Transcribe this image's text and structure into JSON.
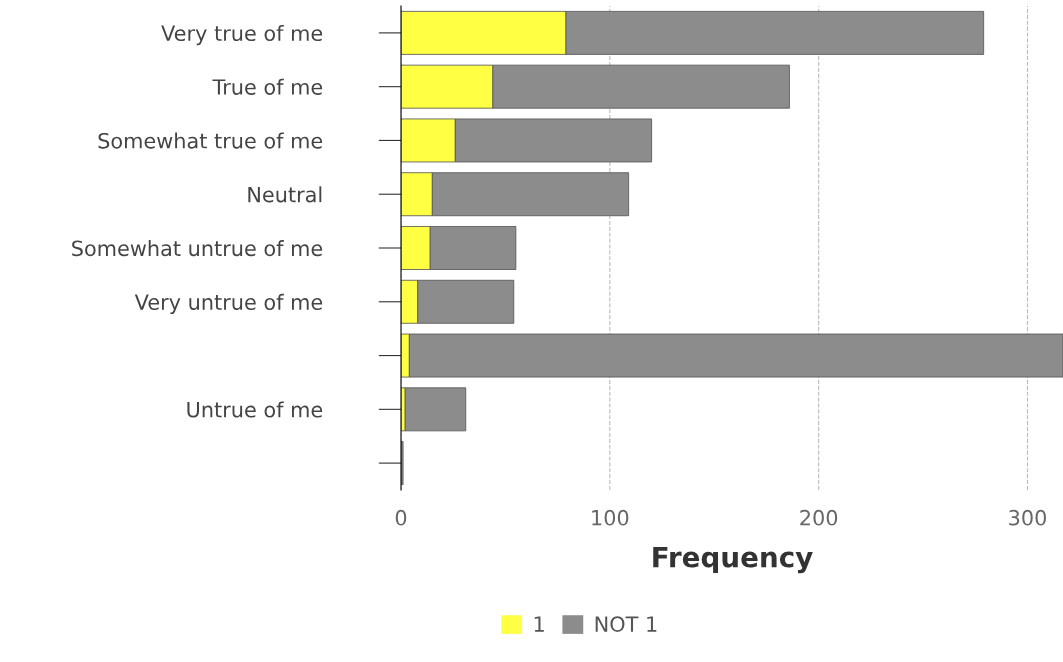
{
  "chart_data": {
    "type": "bar",
    "orientation": "horizontal",
    "stacked": true,
    "categories": [
      "Very true of me",
      "True of me",
      "Somewhat true of me",
      "Neutral",
      "Somewhat untrue of me",
      "Very untrue of me",
      null,
      "Untrue of me",
      null
    ],
    "series": [
      {
        "name": "1",
        "color": "#ffff44",
        "values": [
          79,
          44,
          26,
          15,
          14,
          8,
          4,
          2,
          null
        ]
      },
      {
        "name": "NOT 1",
        "color": "#8c8c8c",
        "values": [
          200,
          142,
          94,
          94,
          41,
          46,
          313,
          29,
          1
        ]
      }
    ],
    "xlabel": "Frequency",
    "xlim": [
      0,
      317
    ],
    "xticks": [
      0,
      100,
      200,
      300
    ],
    "grid": "x",
    "legend": "bottom"
  }
}
